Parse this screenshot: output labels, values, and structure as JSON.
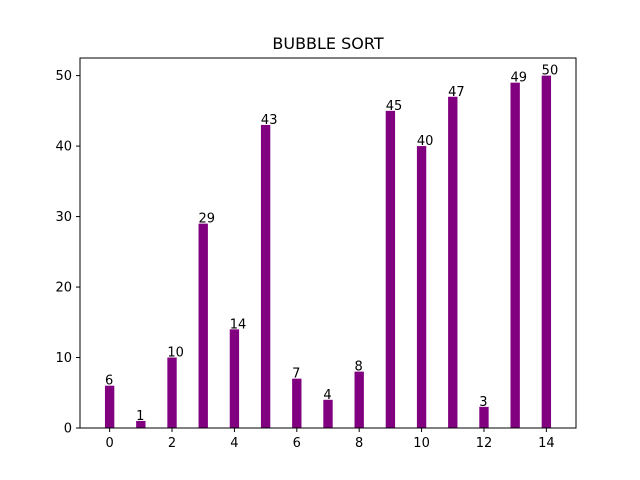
{
  "chart_data": {
    "type": "bar",
    "title": "BUBBLE SORT",
    "xlabel": "",
    "ylabel": "",
    "categories": [
      0,
      1,
      2,
      3,
      4,
      5,
      6,
      7,
      8,
      9,
      10,
      11,
      12,
      13,
      14
    ],
    "values": [
      6,
      1,
      10,
      29,
      14,
      43,
      7,
      4,
      8,
      45,
      40,
      47,
      3,
      49,
      50
    ],
    "xticks": [
      0,
      2,
      4,
      6,
      8,
      10,
      12,
      14
    ],
    "yticks": [
      0,
      10,
      20,
      30,
      40,
      50
    ],
    "xlim": [
      -0.95,
      14.95
    ],
    "ylim": [
      0,
      52.5
    ],
    "bar_color": "#800080",
    "grid": false,
    "legend": "none"
  }
}
